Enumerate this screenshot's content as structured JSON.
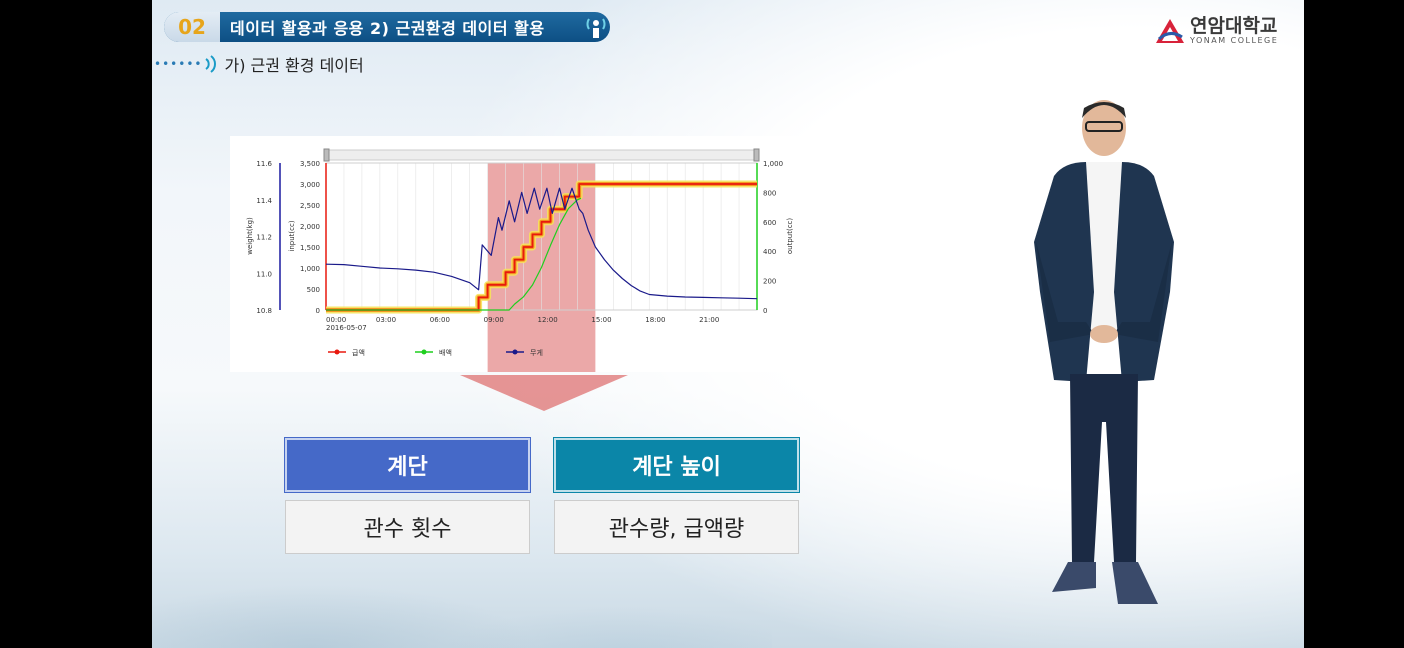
{
  "header": {
    "number": "02",
    "title": "데이터 활용과 응용  2) 근권환경 데이터 활용"
  },
  "subheading": "가) 근권 환경 데이터",
  "logo": {
    "korean": "연암대학교",
    "english": "YONAM COLLEGE"
  },
  "boxes": {
    "top_left": "계단",
    "top_right": "계단 높이",
    "bottom_left": "관수 횟수",
    "bottom_right": "관수량, 급액량"
  },
  "colors": {
    "header": "#0d4f84",
    "accent_orange": "#e7a51b",
    "box_blue": "#4569c8",
    "box_teal": "#0b86a8",
    "highlight": "#e07a7a"
  },
  "chart_data": {
    "type": "line",
    "axes": {
      "weight": {
        "label": "weight(kg)",
        "ticks": [
          "11.6",
          "11.4",
          "11.2",
          "11.0",
          "10.8"
        ],
        "range": [
          10.8,
          11.6
        ]
      },
      "input": {
        "label": "input(cc)",
        "ticks": [
          "3,500",
          "3,000",
          "2,500",
          "2,000",
          "1,500",
          "1,000",
          "500",
          "0"
        ],
        "range": [
          0,
          3500
        ]
      },
      "output": {
        "label": "output(cc)",
        "ticks": [
          "1,000",
          "800",
          "600",
          "400",
          "200",
          "0"
        ],
        "range": [
          0,
          1000
        ]
      }
    },
    "x_ticks": [
      "00:00",
      "03:00",
      "06:00",
      "09:00",
      "12:00",
      "15:00",
      "18:00",
      "21:00"
    ],
    "x_date": "2016-05-07",
    "x_range": [
      0,
      24
    ],
    "highlight_range": [
      9,
      15
    ],
    "legend": [
      "급액",
      "배액",
      "무게"
    ],
    "series": [
      {
        "name": "급액",
        "axis": "input",
        "color": "#e8190e",
        "points": [
          [
            0,
            0
          ],
          [
            8.5,
            0
          ],
          [
            8.5,
            300
          ],
          [
            9,
            300
          ],
          [
            9,
            600
          ],
          [
            10,
            600
          ],
          [
            10,
            900
          ],
          [
            10.5,
            900
          ],
          [
            10.5,
            1200
          ],
          [
            11,
            1200
          ],
          [
            11,
            1500
          ],
          [
            11.5,
            1500
          ],
          [
            11.5,
            1800
          ],
          [
            12,
            1800
          ],
          [
            12,
            2100
          ],
          [
            12.5,
            2100
          ],
          [
            12.5,
            2400
          ],
          [
            13.3,
            2400
          ],
          [
            13.3,
            2700
          ],
          [
            14.1,
            2700
          ],
          [
            14.1,
            3000
          ],
          [
            24,
            3000
          ]
        ]
      },
      {
        "name": "배액",
        "axis": "output",
        "color": "#1fcf1f",
        "points": [
          [
            0,
            0
          ],
          [
            10.2,
            0
          ],
          [
            10.5,
            40
          ],
          [
            11,
            90
          ],
          [
            11.5,
            170
          ],
          [
            12,
            290
          ],
          [
            12.5,
            440
          ],
          [
            13,
            580
          ],
          [
            13.5,
            690
          ],
          [
            14,
            750
          ],
          [
            14.2,
            760
          ]
        ]
      },
      {
        "name": "무게",
        "axis": "input",
        "color": "#1a1a8a",
        "points": [
          [
            0,
            1090
          ],
          [
            1,
            1080
          ],
          [
            2,
            1040
          ],
          [
            3,
            1000
          ],
          [
            4,
            980
          ],
          [
            5,
            950
          ],
          [
            6,
            900
          ],
          [
            7,
            800
          ],
          [
            8,
            650
          ],
          [
            8.5,
            480
          ],
          [
            8.7,
            1550
          ],
          [
            9.2,
            1300
          ],
          [
            9.6,
            2200
          ],
          [
            9.8,
            1900
          ],
          [
            10.2,
            2600
          ],
          [
            10.5,
            2100
          ],
          [
            10.9,
            2800
          ],
          [
            11.2,
            2300
          ],
          [
            11.6,
            2900
          ],
          [
            11.9,
            2400
          ],
          [
            12.3,
            2900
          ],
          [
            12.6,
            2300
          ],
          [
            13,
            2900
          ],
          [
            13.3,
            2400
          ],
          [
            13.7,
            2900
          ],
          [
            14.1,
            2400
          ],
          [
            14.3,
            2300
          ],
          [
            14.6,
            1900
          ],
          [
            15,
            1500
          ],
          [
            15.5,
            1200
          ],
          [
            16,
            950
          ],
          [
            16.5,
            750
          ],
          [
            17,
            580
          ],
          [
            17.5,
            450
          ],
          [
            18,
            370
          ],
          [
            19,
            330
          ],
          [
            20,
            310
          ],
          [
            21,
            300
          ],
          [
            22,
            290
          ],
          [
            23,
            280
          ],
          [
            24,
            270
          ]
        ]
      }
    ]
  }
}
